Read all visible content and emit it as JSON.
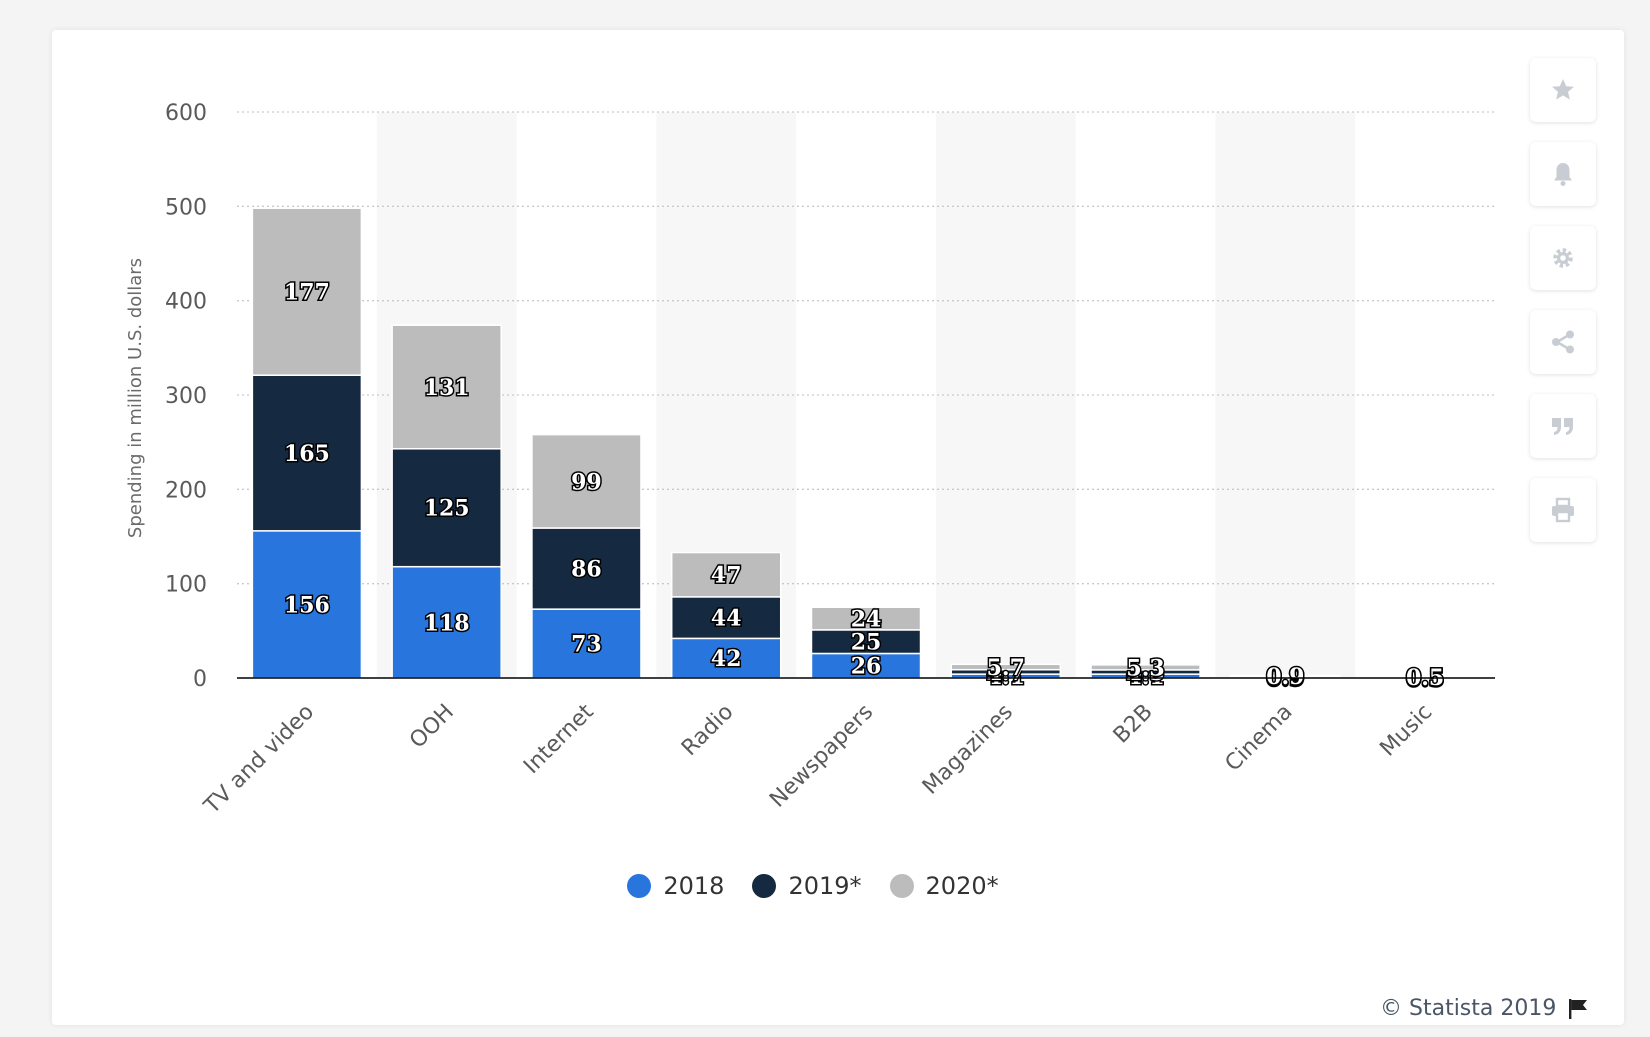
{
  "chart_data": {
    "type": "bar",
    "stacked": true,
    "title": "",
    "xlabel": "",
    "ylabel": "Spending in million U.S. dollars",
    "ylim": [
      0,
      600
    ],
    "yticks": [
      0,
      100,
      200,
      300,
      400,
      500,
      600
    ],
    "grid": true,
    "legend_position": "bottom",
    "categories": [
      "TV and video",
      "OOH",
      "Internet",
      "Radio",
      "Newspapers",
      "Magazines",
      "B2B",
      "Cinema",
      "Music"
    ],
    "series": [
      {
        "name": "2018",
        "color": "#2876dd",
        "values": [
          156,
          118,
          73,
          42,
          26,
          4.1,
          4.1,
          0.9,
          0.5
        ],
        "labels": [
          "156",
          "118",
          "73",
          "42",
          "26",
          "4.1",
          "4.1",
          "0.9",
          "0.5"
        ]
      },
      {
        "name": "2019*",
        "color": "#152a41",
        "values": [
          165,
          125,
          86,
          44,
          25,
          4.7,
          4.5,
          0.9,
          0.5
        ],
        "labels": [
          "165",
          "125",
          "86",
          "44",
          "25",
          "4.7",
          "4.5",
          "0.9",
          "0.5"
        ]
      },
      {
        "name": "2020*",
        "color": "#bcbcbc",
        "values": [
          177,
          131,
          99,
          47,
          24,
          5.7,
          5.3,
          0.9,
          0.5
        ],
        "labels": [
          "177",
          "131",
          "99",
          "47",
          "24",
          "5.7",
          "5.3",
          "0.9",
          "0.5"
        ]
      }
    ]
  },
  "toolbar": [
    {
      "name": "favorite-button",
      "icon": "star-icon"
    },
    {
      "name": "notification-button",
      "icon": "bell-icon"
    },
    {
      "name": "settings-button",
      "icon": "gear-icon"
    },
    {
      "name": "share-button",
      "icon": "share-icon"
    },
    {
      "name": "cite-button",
      "icon": "quote-icon"
    },
    {
      "name": "print-button",
      "icon": "print-icon"
    }
  ],
  "credit": {
    "text": "© Statista 2019",
    "icon": "flag-icon"
  },
  "colors": {
    "icon": "#c8cdd4",
    "axis_text": "#5a5a5a"
  }
}
